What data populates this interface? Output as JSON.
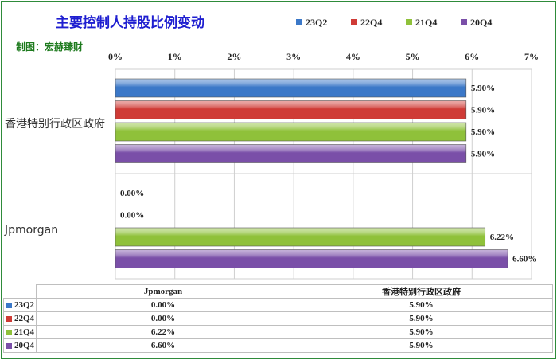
{
  "title": "主要控制人持股比例变动",
  "credit": "制图：宏赫臻财",
  "colors": {
    "23Q2": "#3b78c8",
    "22Q4": "#cf3b36",
    "21Q4": "#8fc13a",
    "20Q4": "#7a4fa8"
  },
  "legend": [
    "23Q2",
    "22Q4",
    "21Q4",
    "20Q4"
  ],
  "chart_data": {
    "type": "bar",
    "orientation": "horizontal",
    "title": "主要控制人持股比例变动",
    "categories": [
      "香港特别行政区政府",
      "Jpmorgan"
    ],
    "series": [
      {
        "name": "23Q2",
        "values": [
          5.9,
          0.0
        ]
      },
      {
        "name": "22Q4",
        "values": [
          5.9,
          0.0
        ]
      },
      {
        "name": "21Q4",
        "values": [
          5.9,
          6.22
        ]
      },
      {
        "name": "20Q4",
        "values": [
          5.9,
          6.6
        ]
      }
    ],
    "xlim": [
      0,
      7
    ],
    "ticks": [
      "0%",
      "1%",
      "2%",
      "3%",
      "4%",
      "5%",
      "6%",
      "7%"
    ],
    "value_labels": {
      "香港特别行政区政府": [
        "5.90%",
        "5.90%",
        "5.90%",
        "5.90%"
      ],
      "Jpmorgan": [
        "0.00%",
        "0.00%",
        "6.22%",
        "6.60%"
      ]
    },
    "grid": true,
    "legend_position": "top"
  },
  "data_table": {
    "headers": [
      "Jpmorgan",
      "香港特别行政区政府"
    ],
    "rows": [
      {
        "label": "23Q2",
        "values": [
          "0.00%",
          "5.90%"
        ]
      },
      {
        "label": "22Q4",
        "values": [
          "0.00%",
          "5.90%"
        ]
      },
      {
        "label": "21Q4",
        "values": [
          "6.22%",
          "5.90%"
        ]
      },
      {
        "label": "20Q4",
        "values": [
          "6.60%",
          "5.90%"
        ]
      }
    ]
  }
}
